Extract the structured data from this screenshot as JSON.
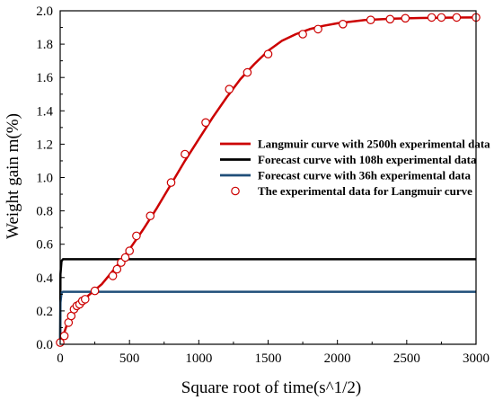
{
  "chart_data": {
    "type": "line",
    "title": "",
    "xlabel": "Square root of time(s^1/2)",
    "ylabel": "Weight gain m(%)",
    "xlim": [
      0,
      3000
    ],
    "ylim": [
      0.0,
      2.0
    ],
    "xticks": [
      0,
      500,
      1000,
      1500,
      2000,
      2500,
      3000
    ],
    "yticks": [
      0.0,
      0.2,
      0.4,
      0.6,
      0.8,
      1.0,
      1.2,
      1.4,
      1.6,
      1.8,
      2.0
    ],
    "xtick_labels": [
      "0",
      "500",
      "1000",
      "1500",
      "2000",
      "2500",
      "3000"
    ],
    "ytick_labels": [
      "0.0",
      "0.2",
      "0.4",
      "0.6",
      "0.8",
      "1.0",
      "1.2",
      "1.4",
      "1.6",
      "1.8",
      "2.0"
    ],
    "grid": false,
    "legend_position": "center-right",
    "series": [
      {
        "name": "Langmuir curve with 2500h experimental data",
        "kind": "line",
        "color": "#cc0000",
        "x": [
          0,
          50,
          100,
          200,
          300,
          400,
          500,
          600,
          700,
          800,
          900,
          1000,
          1100,
          1200,
          1300,
          1400,
          1500,
          1600,
          1700,
          1800,
          1900,
          2000,
          2200,
          2400,
          2600,
          2800,
          3000
        ],
        "y": [
          0.0,
          0.12,
          0.2,
          0.29,
          0.36,
          0.46,
          0.57,
          0.69,
          0.82,
          0.96,
          1.1,
          1.23,
          1.36,
          1.48,
          1.59,
          1.68,
          1.76,
          1.82,
          1.86,
          1.89,
          1.91,
          1.925,
          1.945,
          1.953,
          1.957,
          1.959,
          1.96
        ]
      },
      {
        "name": "Forecast curve with 108h experimental data",
        "kind": "line",
        "color": "#000000",
        "x": [
          0,
          2,
          10,
          20,
          3000
        ],
        "y": [
          0.0,
          0.42,
          0.5,
          0.51,
          0.51
        ]
      },
      {
        "name": "Forecast curve with 36h experimental data",
        "kind": "line",
        "color": "#1f4e79",
        "x": [
          0,
          2,
          10,
          20,
          3000
        ],
        "y": [
          0.0,
          0.25,
          0.31,
          0.315,
          0.315
        ]
      },
      {
        "name": "The experimental data for Langmuir curve",
        "kind": "scatter",
        "color": "#cc0000",
        "x": [
          0,
          30,
          60,
          80,
          100,
          120,
          140,
          160,
          180,
          250,
          380,
          410,
          440,
          470,
          500,
          550,
          650,
          800,
          900,
          1050,
          1220,
          1350,
          1500,
          1750,
          1860,
          2040,
          2240,
          2380,
          2490,
          2680,
          2750,
          2860,
          3000
        ],
        "y": [
          0.01,
          0.05,
          0.13,
          0.17,
          0.21,
          0.23,
          0.24,
          0.26,
          0.27,
          0.32,
          0.41,
          0.45,
          0.49,
          0.52,
          0.56,
          0.65,
          0.77,
          0.97,
          1.14,
          1.33,
          1.53,
          1.63,
          1.74,
          1.86,
          1.89,
          1.92,
          1.945,
          1.95,
          1.955,
          1.96,
          1.96,
          1.96,
          1.96
        ]
      }
    ]
  }
}
